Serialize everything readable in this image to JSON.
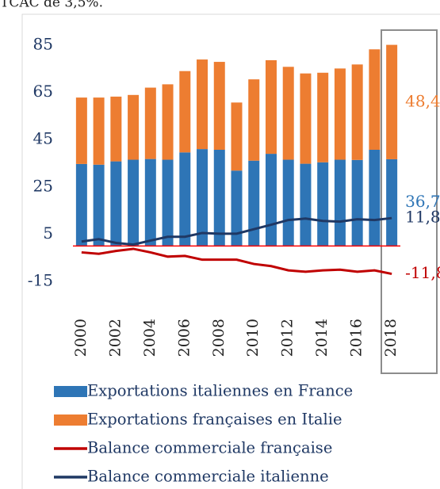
{
  "chart_data": {
    "type": "stacked_bar_line",
    "caption": "TCAC de 3,5%.",
    "categories": [
      "2000",
      null,
      "2002",
      null,
      "2004",
      null,
      "2006",
      null,
      "2008",
      null,
      "2010",
      null,
      "2012",
      null,
      "2014",
      null,
      "2016",
      null,
      "2018"
    ],
    "series": [
      {
        "name": "Exportations italiennes en France",
        "color": "#2e75b6",
        "kind": "bar",
        "values": [
          34.7,
          34.4,
          35.8,
          36.5,
          36.8,
          36.5,
          39.6,
          41.0,
          40.7,
          31.9,
          36.1,
          39.0,
          36.5,
          34.8,
          35.4,
          36.5,
          36.4,
          40.7,
          36.7
        ],
        "value_labels": [
          null,
          null,
          null,
          null,
          null,
          null,
          null,
          null,
          null,
          null,
          null,
          null,
          null,
          null,
          null,
          null,
          null,
          null,
          "36,7"
        ]
      },
      {
        "name": "Exportations françaises en Italie",
        "color": "#ed7d31",
        "kind": "bar",
        "values": [
          28.1,
          28.4,
          27.4,
          27.4,
          30.2,
          31.9,
          34.4,
          37.9,
          37.2,
          28.8,
          34.4,
          39.6,
          39.3,
          38.2,
          37.9,
          38.6,
          40.4,
          42.5,
          48.4
        ],
        "value_labels": [
          null,
          null,
          null,
          null,
          null,
          null,
          null,
          null,
          null,
          null,
          null,
          null,
          null,
          null,
          null,
          null,
          null,
          null,
          "48,4"
        ]
      },
      {
        "name": "Balance commerciale française",
        "color": "#c00000",
        "kind": "line",
        "values": [
          -2.7,
          -3.3,
          -2.1,
          -1.2,
          -2.7,
          -4.5,
          -4.2,
          -5.8,
          -5.8,
          -5.8,
          -7.6,
          -8.5,
          -10.3,
          -10.9,
          -10.3,
          -10.0,
          -10.9,
          -10.3,
          -11.8
        ],
        "value_labels": [
          null,
          null,
          null,
          null,
          null,
          null,
          null,
          null,
          null,
          null,
          null,
          null,
          null,
          null,
          null,
          null,
          null,
          null,
          "-11,8"
        ]
      },
      {
        "name": "Balance commerciale italienne",
        "color": "#1f3864",
        "kind": "line",
        "values": [
          1.9,
          2.9,
          1.3,
          0.6,
          2.3,
          3.9,
          3.9,
          5.5,
          5.2,
          5.2,
          7.1,
          9.0,
          11.0,
          11.6,
          10.6,
          10.3,
          11.3,
          11.0,
          11.8
        ],
        "value_labels": [
          null,
          null,
          null,
          null,
          null,
          null,
          null,
          null,
          null,
          null,
          null,
          null,
          null,
          null,
          null,
          null,
          null,
          null,
          "11,8"
        ]
      }
    ],
    "ylim": [
      -22,
      92
    ],
    "yticks": [
      -15,
      5,
      25,
      45,
      65,
      85
    ],
    "zero_line_color": "#ff0000"
  }
}
